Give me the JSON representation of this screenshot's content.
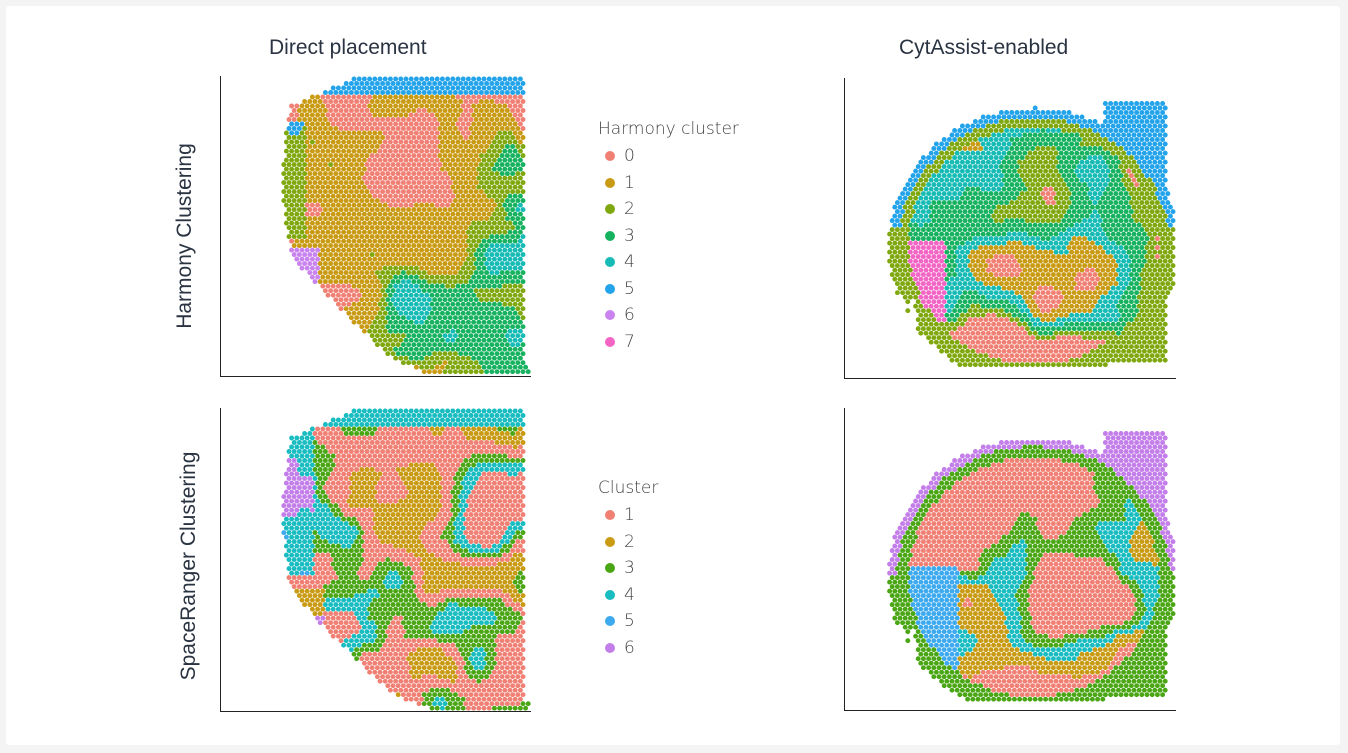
{
  "chart_data": [
    {
      "type": "scatter",
      "title": "Direct placement",
      "row_label": "Harmony Clustering",
      "legend_title": "Harmony cluster",
      "legend": [
        {
          "label": "0",
          "color": "#f07f74"
        },
        {
          "label": "1",
          "color": "#c99a13"
        },
        {
          "label": "2",
          "color": "#7fa80f"
        },
        {
          "label": "3",
          "color": "#17b25f"
        },
        {
          "label": "4",
          "color": "#16bbb5"
        },
        {
          "label": "5",
          "color": "#22a3ea"
        },
        {
          "label": "6",
          "color": "#c983ee"
        },
        {
          "label": "7",
          "color": "#f265c4"
        }
      ],
      "grid": false,
      "xlabel": "",
      "ylabel": ""
    },
    {
      "type": "scatter",
      "title": "CytAssist-enabled",
      "row_label": "Harmony Clustering",
      "grid": false,
      "xlabel": "",
      "ylabel": ""
    },
    {
      "type": "scatter",
      "title": "Direct placement",
      "row_label": "SpaceRanger Clustering",
      "legend_title": "Cluster",
      "legend": [
        {
          "label": "1",
          "color": "#f07f74"
        },
        {
          "label": "2",
          "color": "#c99a13"
        },
        {
          "label": "3",
          "color": "#4aa614"
        },
        {
          "label": "4",
          "color": "#19bcc0"
        },
        {
          "label": "5",
          "color": "#3da9ee"
        },
        {
          "label": "6",
          "color": "#c37ee9"
        }
      ],
      "grid": false,
      "xlabel": "",
      "ylabel": ""
    },
    {
      "type": "scatter",
      "title": "CytAssist-enabled",
      "row_label": "SpaceRanger Clustering",
      "grid": false,
      "xlabel": "",
      "ylabel": ""
    }
  ],
  "headings": {
    "col_left": "Direct placement",
    "col_right": "CytAssist-enabled",
    "row_top": "Harmony Clustering",
    "row_bottom": "SpaceRanger Clustering"
  },
  "spot_colors": {
    "harmony": [
      "#f07f74",
      "#c99a13",
      "#7fa80f",
      "#17b25f",
      "#16bbb5",
      "#22a3ea",
      "#c983ee",
      "#f265c4"
    ],
    "spaceranger": [
      "#f07f74",
      "#c99a13",
      "#4aa614",
      "#19bcc0",
      "#3da9ee",
      "#c37ee9"
    ]
  }
}
